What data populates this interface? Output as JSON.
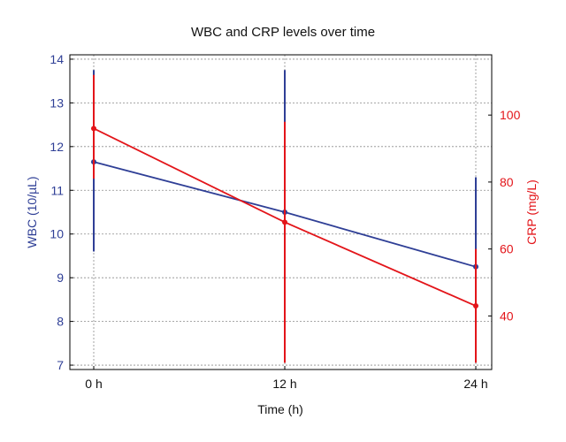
{
  "chart_data": {
    "type": "line",
    "title": "WBC and CRP levels over time",
    "xlabel": "Time (h)",
    "categories": [
      "0 h",
      "12 h",
      "24 h"
    ],
    "x": [
      0,
      12,
      24
    ],
    "xlim": [
      -1.5,
      25
    ],
    "left_axis": {
      "label": "WBC (10/µL)",
      "ylim": [
        6.9,
        14.1
      ],
      "ticks": [
        7,
        8,
        9,
        10,
        11,
        12,
        13,
        14
      ],
      "color": "#2f3f96"
    },
    "right_axis": {
      "label": "CRP (mg/L)",
      "ylim": [
        24,
        118
      ],
      "ticks": [
        40,
        60,
        80,
        100
      ],
      "color": "#e3151a"
    },
    "grid": true,
    "series": [
      {
        "name": "WBC",
        "axis": "left",
        "color": "#2f3f96",
        "values": [
          11.65,
          10.5,
          9.25
        ],
        "error_low": [
          9.6,
          7.2,
          7.2
        ],
        "error_high": [
          13.75,
          13.75,
          11.3
        ]
      },
      {
        "name": "CRP",
        "axis": "right",
        "color": "#e3151a",
        "values": [
          96,
          68,
          43
        ],
        "error_low": [
          81,
          26,
          26
        ],
        "error_high": [
          112,
          98,
          60
        ]
      }
    ]
  }
}
